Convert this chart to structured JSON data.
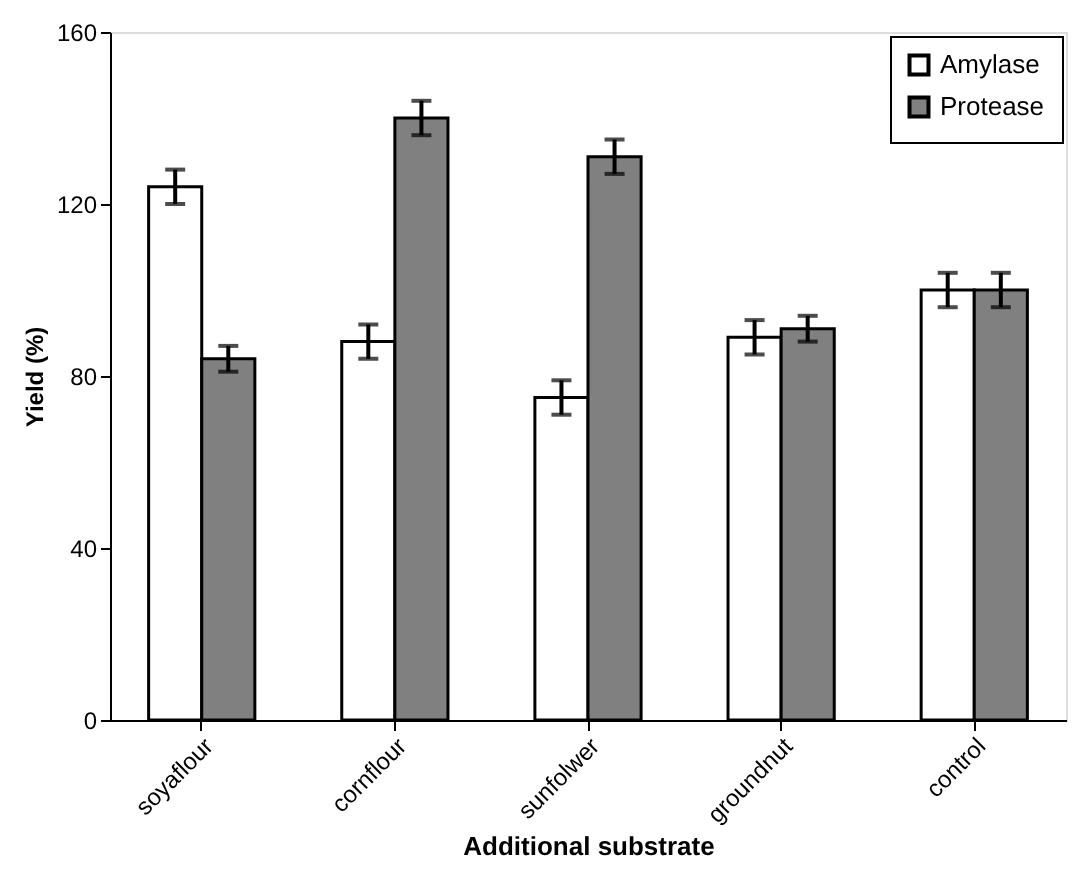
{
  "chart_data": {
    "type": "bar",
    "xlabel": "Additional substrate",
    "ylabel": "Yield (%)",
    "categories": [
      "soyaflour",
      "cornflour",
      "sunfolwer",
      "groundnut",
      "control"
    ],
    "series": [
      {
        "name": "Amylase",
        "color": "#ffffff",
        "values": [
          124,
          88,
          75,
          89,
          100
        ],
        "errors": [
          4,
          4,
          4,
          4,
          4
        ]
      },
      {
        "name": "Protease",
        "color": "#808080",
        "values": [
          84,
          140,
          131,
          91,
          100
        ],
        "errors": [
          3,
          4,
          4,
          3,
          4
        ]
      }
    ],
    "ylim": [
      0,
      160
    ],
    "yticks": [
      0,
      40,
      80,
      120,
      160
    ],
    "grid": false,
    "legend": "top right"
  }
}
